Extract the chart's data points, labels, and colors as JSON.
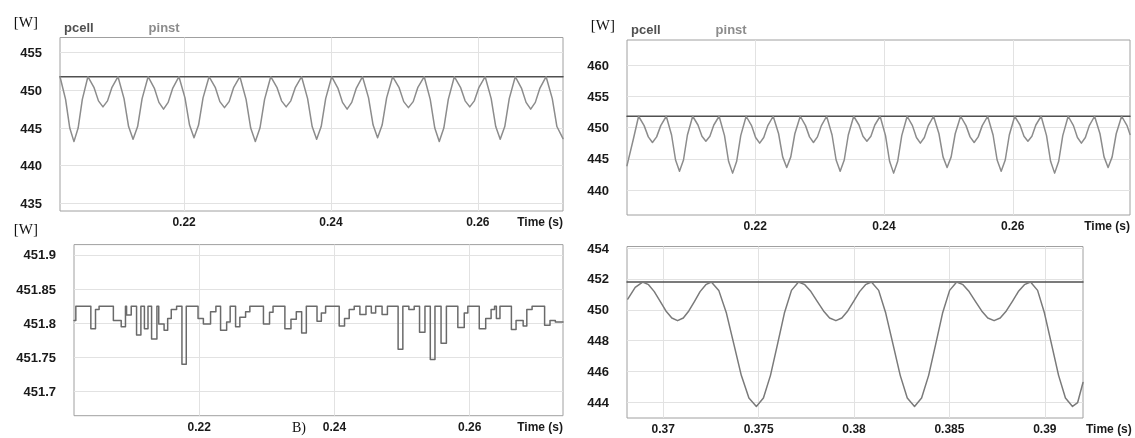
{
  "chart_data": [
    {
      "type": "line",
      "ylabel": "[W]",
      "xlabel": "Time (s)",
      "xlim": [
        0.2031,
        0.2716
      ],
      "xticks": [
        0.22,
        0.24,
        0.26
      ],
      "ylim": [
        434,
        457
      ],
      "yticks": [
        435,
        440,
        445,
        450,
        455
      ],
      "grid": true,
      "legend": "top left",
      "series": [
        {
          "name": "pcell",
          "color": "#505050",
          "x": [
            0.2031,
            0.2716
          ],
          "values": [
            451.8,
            451.8
          ]
        },
        {
          "name": "pinst",
          "color": "#8c8c8c",
          "x": [
            0.2031,
            0.20386,
            0.20443,
            0.205,
            0.20557,
            0.20614,
            0.2069,
            0.20772,
            0.20834,
            0.20895,
            0.20957,
            0.21018,
            0.211,
            0.21182,
            0.21244,
            0.21305,
            0.21367,
            0.21428,
            0.2151,
            0.21594,
            0.21657,
            0.2172,
            0.21783,
            0.21846,
            0.2193,
            0.22012,
            0.22074,
            0.22135,
            0.22197,
            0.22258,
            0.2234,
            0.22424,
            0.22487,
            0.2255,
            0.22613,
            0.22676,
            0.2276,
            0.22844,
            0.22907,
            0.2297,
            0.23033,
            0.23096,
            0.2318,
            0.23264,
            0.23327,
            0.2339,
            0.23453,
            0.23516,
            0.236,
            0.23682,
            0.23744,
            0.23805,
            0.23867,
            0.23928,
            0.2401,
            0.24094,
            0.24157,
            0.2422,
            0.24283,
            0.24346,
            0.2443,
            0.24512,
            0.24574,
            0.24635,
            0.24697,
            0.24758,
            0.2484,
            0.24926,
            0.24991,
            0.25055,
            0.2512,
            0.25184,
            0.2527,
            0.25352,
            0.25414,
            0.25475,
            0.25537,
            0.25598,
            0.2568,
            0.25764,
            0.25827,
            0.2589,
            0.25953,
            0.26016,
            0.261,
            0.26182,
            0.26244,
            0.26305,
            0.26367,
            0.26428,
            0.2651,
            0.26594,
            0.26657,
            0.2672,
            0.26783,
            0.26846,
            0.2693,
            0.27014,
            0.27077,
            0.2716
          ],
          "values": [
            451.8,
            448.8,
            445.0,
            443.2,
            445.0,
            448.8,
            451.8,
            450.4,
            448.6,
            447.8,
            448.6,
            450.4,
            451.8,
            448.9,
            445.2,
            443.5,
            445.2,
            448.9,
            451.8,
            450.3,
            448.4,
            447.5,
            448.4,
            450.3,
            451.8,
            449.0,
            445.4,
            443.7,
            445.4,
            449.0,
            451.8,
            450.4,
            448.5,
            447.7,
            448.5,
            450.4,
            451.8,
            448.8,
            445.0,
            443.2,
            445.0,
            448.8,
            451.8,
            450.4,
            448.6,
            447.8,
            448.6,
            450.4,
            451.8,
            448.9,
            445.2,
            443.5,
            445.2,
            448.9,
            451.8,
            450.3,
            448.4,
            447.5,
            448.4,
            450.3,
            451.8,
            449.0,
            445.4,
            443.7,
            445.4,
            449.0,
            451.8,
            450.4,
            448.5,
            447.7,
            448.5,
            450.4,
            451.8,
            448.8,
            445.0,
            443.2,
            445.0,
            448.8,
            451.8,
            450.4,
            448.6,
            447.8,
            448.6,
            450.4,
            451.8,
            448.9,
            445.2,
            443.5,
            445.2,
            448.9,
            451.8,
            450.3,
            448.4,
            447.5,
            448.4,
            450.3,
            451.8,
            448.9,
            445.2,
            443.6
          ]
        }
      ]
    },
    {
      "type": "line",
      "ylabel": "[W]",
      "xlabel": "Time (s)",
      "xlim": [
        0.2001,
        0.2782
      ],
      "xticks": [
        0.22,
        0.24,
        0.26
      ],
      "ylim": [
        436,
        464
      ],
      "yticks": [
        440,
        445,
        450,
        455,
        460
      ],
      "grid": true,
      "legend": "top left",
      "series": [
        {
          "name": "pcell",
          "color": "#505050",
          "x": [
            0.2001,
            0.2782
          ],
          "values": [
            451.8,
            451.8
          ]
        },
        {
          "name": "pinst",
          "color": "#8c8c8c",
          "x": [
            0.2001,
            0.2011,
            0.2019,
            0.20276,
            0.20341,
            0.20405,
            0.2047,
            0.20534,
            0.2062,
            0.20702,
            0.20764,
            0.20825,
            0.20887,
            0.20948,
            0.2103,
            0.21112,
            0.21174,
            0.21235,
            0.21297,
            0.21358,
            0.2144,
            0.21524,
            0.21587,
            0.2165,
            0.21713,
            0.21776,
            0.2186,
            0.21944,
            0.22007,
            0.2207,
            0.22133,
            0.22196,
            0.2228,
            0.22364,
            0.22427,
            0.2249,
            0.22553,
            0.22616,
            0.227,
            0.22782,
            0.22844,
            0.22905,
            0.22967,
            0.23028,
            0.2311,
            0.23194,
            0.23257,
            0.2332,
            0.23383,
            0.23446,
            0.2353,
            0.23612,
            0.23674,
            0.23735,
            0.23797,
            0.23858,
            0.2394,
            0.24024,
            0.24087,
            0.2415,
            0.24213,
            0.24276,
            0.2436,
            0.24442,
            0.24504,
            0.24565,
            0.24627,
            0.24688,
            0.2477,
            0.24854,
            0.24917,
            0.2498,
            0.25043,
            0.25106,
            0.2519,
            0.25274,
            0.25337,
            0.254,
            0.25463,
            0.25526,
            0.2561,
            0.25694,
            0.25757,
            0.2582,
            0.25883,
            0.25946,
            0.2603,
            0.26112,
            0.26174,
            0.26235,
            0.26297,
            0.26358,
            0.2644,
            0.26524,
            0.26587,
            0.2665,
            0.26713,
            0.26776,
            0.2686,
            0.26942,
            0.27004,
            0.27065,
            0.27127,
            0.27188,
            0.2727,
            0.27354,
            0.27417,
            0.2748,
            0.27543,
            0.27606,
            0.2769,
            0.27774,
            0.2782
          ],
          "values": [
            443.9,
            448.2,
            451.8,
            450.3,
            448.5,
            447.6,
            448.5,
            450.3,
            451.8,
            448.8,
            444.8,
            443.0,
            444.8,
            448.8,
            451.8,
            450.4,
            448.6,
            447.8,
            448.6,
            450.4,
            451.8,
            448.7,
            444.6,
            442.7,
            444.6,
            448.7,
            451.8,
            450.3,
            448.4,
            447.5,
            448.4,
            450.3,
            451.8,
            449.0,
            445.3,
            443.6,
            445.3,
            449.0,
            451.8,
            450.3,
            448.5,
            447.6,
            448.5,
            450.3,
            451.8,
            448.8,
            444.8,
            443.0,
            444.8,
            448.8,
            451.8,
            450.4,
            448.6,
            447.8,
            448.6,
            450.4,
            451.8,
            448.7,
            444.6,
            442.7,
            444.6,
            448.7,
            451.8,
            450.3,
            448.4,
            447.5,
            448.4,
            450.3,
            451.8,
            449.0,
            445.3,
            443.6,
            445.3,
            449.0,
            451.8,
            450.3,
            448.5,
            447.6,
            448.5,
            450.3,
            451.8,
            448.8,
            444.8,
            443.0,
            444.8,
            448.8,
            451.8,
            450.4,
            448.6,
            447.8,
            448.6,
            450.4,
            451.8,
            448.7,
            444.6,
            442.7,
            444.6,
            448.7,
            451.8,
            450.3,
            448.4,
            447.5,
            448.4,
            450.3,
            451.8,
            449.0,
            445.3,
            443.6,
            445.3,
            449.0,
            451.8,
            450.3,
            448.9
          ]
        }
      ]
    },
    {
      "type": "step",
      "ylabel": "[W]",
      "xlabel": "Time (s)",
      "annotations": [
        "B)"
      ],
      "xlim": [
        0.2015,
        0.2738
      ],
      "xticks": [
        0.22,
        0.24,
        0.26
      ],
      "ylim": [
        451.665,
        451.915
      ],
      "yticks": [
        451.7,
        451.75,
        451.8,
        451.85,
        451.9
      ],
      "grid": true,
      "series": [
        {
          "color": "#6a6a6a",
          "x": [
            0.2015,
            0.20177,
            0.20399,
            0.20468,
            0.20521,
            0.20732,
            0.20848,
            0.20911,
            0.20927,
            0.20996,
            0.21075,
            0.21139,
            0.21191,
            0.21244,
            0.21297,
            0.21376,
            0.21403,
            0.21482,
            0.21535,
            0.21588,
            0.21667,
            0.21746,
            0.2181,
            0.21984,
            0.22063,
            0.22169,
            0.22248,
            0.22317,
            0.22407,
            0.22459,
            0.22539,
            0.22602,
            0.22687,
            0.2275,
            0.22951,
            0.23041,
            0.23093,
            0.23268,
            0.23358,
            0.23437,
            0.23516,
            0.23585,
            0.23743,
            0.23807,
            0.2387,
            0.24071,
            0.2415,
            0.24219,
            0.24293,
            0.24377,
            0.24467,
            0.24546,
            0.2461,
            0.24705,
            0.24784,
            0.24942,
            0.25012,
            0.25101,
            0.2518,
            0.25259,
            0.25339,
            0.25418,
            0.25487,
            0.25577,
            0.25656,
            0.25825,
            0.2592,
            0.25973,
            0.26142,
            0.26237,
            0.26317,
            0.26368,
            0.26395,
            0.26448,
            0.26617,
            0.26686,
            0.26791,
            0.26845,
            0.26923,
            0.27108,
            0.27188,
            0.27267,
            0.2738
          ],
          "values": [
            451.804,
            451.825,
            451.792,
            451.82,
            451.825,
            451.804,
            451.795,
            451.825,
            451.812,
            451.825,
            451.783,
            451.825,
            451.792,
            451.825,
            451.777,
            451.825,
            451.799,
            451.79,
            451.807,
            451.82,
            451.825,
            451.74,
            451.825,
            451.807,
            451.799,
            451.817,
            451.825,
            451.79,
            451.802,
            451.825,
            451.795,
            451.809,
            451.817,
            451.825,
            451.799,
            451.816,
            451.825,
            451.792,
            451.806,
            451.817,
            451.786,
            451.825,
            451.803,
            451.815,
            451.825,
            451.796,
            451.807,
            451.82,
            451.825,
            451.813,
            451.825,
            451.815,
            451.825,
            451.813,
            451.825,
            451.762,
            451.825,
            451.82,
            451.825,
            451.787,
            451.825,
            451.747,
            451.825,
            451.771,
            451.825,
            451.794,
            451.815,
            451.825,
            451.792,
            451.807,
            451.82,
            451.825,
            451.807,
            451.825,
            451.791,
            451.804,
            451.796,
            451.82,
            451.825,
            451.797,
            451.804,
            451.802,
            451.802
          ]
        }
      ]
    },
    {
      "type": "line",
      "xlabel": "Time (s)",
      "xlim": [
        0.3681,
        0.392
      ],
      "xticks": [
        0.37,
        0.375,
        0.38,
        0.385,
        0.39
      ],
      "ylim": [
        443,
        454.1
      ],
      "yticks": [
        444,
        446,
        448,
        450,
        452,
        454
      ],
      "grid": true,
      "series": [
        {
          "color": "#505050",
          "x": [
            0.3681,
            0.392
          ],
          "values": [
            451.8,
            451.8
          ]
        },
        {
          "color": "#7a7a7a",
          "x": [
            0.36814,
            0.36853,
            0.36892,
            0.36923,
            0.36953,
            0.36984,
            0.37014,
            0.37045,
            0.37075,
            0.37105,
            0.37134,
            0.37164,
            0.37193,
            0.37223,
            0.37252,
            0.37291,
            0.37331,
            0.3737,
            0.37409,
            0.37449,
            0.37488,
            0.37525,
            0.37562,
            0.37599,
            0.37635,
            0.37672,
            0.37709,
            0.37742,
            0.37774,
            0.37807,
            0.3784,
            0.37872,
            0.37905,
            0.37936,
            0.37967,
            0.37998,
            0.38029,
            0.3806,
            0.38091,
            0.38129,
            0.38166,
            0.38204,
            0.38242,
            0.38279,
            0.38317,
            0.38354,
            0.38391,
            0.38428,
            0.38464,
            0.38501,
            0.38538,
            0.38571,
            0.38603,
            0.38636,
            0.38669,
            0.38701,
            0.38734,
            0.38766,
            0.38798,
            0.3883,
            0.38861,
            0.38893,
            0.38925,
            0.38962,
            0.38998,
            0.39035,
            0.39072,
            0.39108,
            0.39145,
            0.39172,
            0.392
          ],
          "values": [
            450.7,
            451.45,
            451.8,
            451.63,
            451.18,
            450.55,
            449.93,
            449.47,
            449.3,
            449.47,
            449.93,
            450.55,
            451.18,
            451.63,
            451.8,
            451.26,
            449.79,
            447.78,
            445.76,
            444.29,
            443.75,
            444.29,
            445.76,
            447.78,
            449.79,
            451.26,
            451.8,
            451.63,
            451.18,
            450.55,
            449.93,
            449.47,
            449.3,
            449.47,
            449.93,
            450.55,
            451.18,
            451.63,
            451.8,
            451.26,
            449.79,
            447.78,
            445.76,
            444.29,
            443.75,
            444.29,
            445.76,
            447.78,
            449.79,
            451.26,
            451.8,
            451.63,
            451.18,
            450.55,
            449.93,
            449.47,
            449.3,
            449.47,
            449.93,
            450.55,
            451.18,
            451.63,
            451.8,
            451.26,
            449.79,
            447.78,
            445.76,
            444.29,
            443.75,
            444.0,
            445.3
          ]
        }
      ]
    }
  ]
}
